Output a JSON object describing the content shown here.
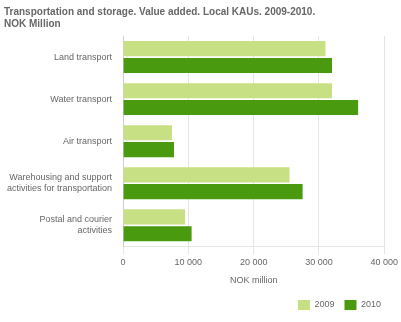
{
  "chart_data": {
    "type": "bar",
    "orientation": "horizontal",
    "title": "Transportation and storage. Value added. Local KAUs. 2009-2010.\nNOK Million",
    "categories": [
      "Land transport",
      "Water transport",
      "Air transport",
      "Warehousing and support\nactivities for transportation",
      "Postal and courier\nactivities"
    ],
    "series": [
      {
        "name": "2009",
        "color": "#c8e084",
        "values": [
          31000,
          32000,
          7500,
          25500,
          9500
        ]
      },
      {
        "name": "2010",
        "color": "#4a9a10",
        "values": [
          32000,
          36000,
          7800,
          27500,
          10500
        ]
      }
    ],
    "xlabel": "NOK million",
    "xlim": [
      0,
      40000
    ],
    "xticks": [
      0,
      {
        "value": 10000,
        "label": "10 000"
      },
      {
        "value": 20000,
        "label": "20 000"
      },
      {
        "value": 30000,
        "label": "30 000"
      },
      {
        "value": 40000,
        "label": "40 000"
      }
    ],
    "grid": true,
    "legend": "lower right"
  }
}
